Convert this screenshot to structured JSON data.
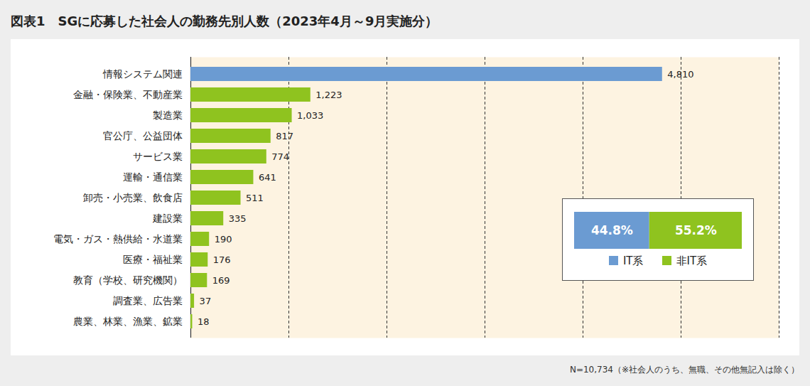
{
  "chart_data": [
    {
      "type": "bar",
      "title": "図表1　SGに応募した社会人の勤務先別人数（2023年4月～9月実施分）",
      "caption": "N=10,734（※社会人のうち、無職、その他無記入は除く）",
      "orientation": "horizontal",
      "categories": [
        "情報システム関連",
        "金融・保険業、不動産業",
        "製造業",
        "官公庁、公益団体",
        "サービス業",
        "運輸・通信業",
        "卸売・小売業、飲食店",
        "建設業",
        "電気・ガス・熱供給・水道業",
        "医療・福祉業",
        "教育（学校、研究機関）",
        "調査業、広告業",
        "農業、林業、漁業、鉱業"
      ],
      "values": [
        4810,
        1223,
        1033,
        817,
        774,
        641,
        511,
        335,
        190,
        176,
        169,
        37,
        18
      ],
      "value_labels": [
        "4,810",
        "1,223",
        "1,033",
        "817",
        "774",
        "641",
        "511",
        "335",
        "190",
        "176",
        "169",
        "37",
        "18"
      ],
      "colors": [
        "#6b9bd2",
        "#8fc31f",
        "#8fc31f",
        "#8fc31f",
        "#8fc31f",
        "#8fc31f",
        "#8fc31f",
        "#8fc31f",
        "#8fc31f",
        "#8fc31f",
        "#8fc31f",
        "#8fc31f",
        "#8fc31f"
      ],
      "xlim": [
        0,
        6000
      ],
      "xticks": [
        0,
        1000,
        2000,
        3000,
        4000,
        5000,
        6000
      ],
      "grid": true,
      "data_labels": true,
      "tick_labels": "y"
    },
    {
      "type": "bar",
      "orientation": "horizontal",
      "stacked": true,
      "categories": [
        null
      ],
      "series": [
        {
          "name": "IT系",
          "color": "#6b9bd2",
          "values": [
            44.8
          ],
          "value_labels": [
            "44.8%"
          ]
        },
        {
          "name": "非IT系",
          "color": "#8fc31f",
          "values": [
            55.2
          ],
          "value_labels": [
            "55.2%"
          ]
        }
      ],
      "xlim": [
        0,
        100
      ],
      "data_labels": true,
      "tick_labels": false,
      "legend": "bottom"
    }
  ]
}
